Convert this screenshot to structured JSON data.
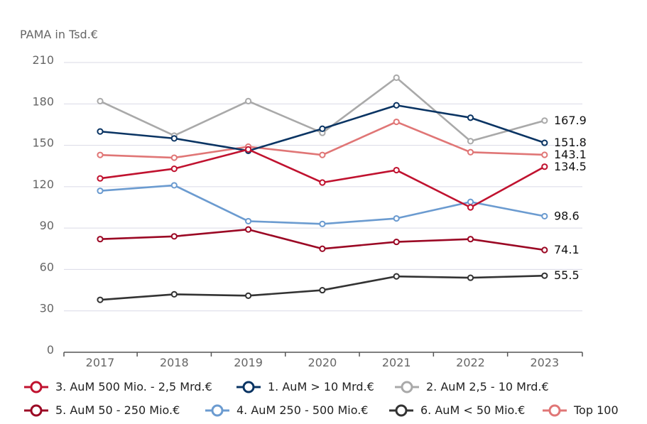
{
  "chart_data": {
    "type": "line",
    "ylabel": "PAMA in Tsd.€",
    "x": [
      "2017",
      "2018",
      "2019",
      "2020",
      "2021",
      "2022",
      "2023"
    ],
    "ylim": [
      0,
      210
    ],
    "yticks": [
      0,
      30,
      60,
      90,
      120,
      150,
      180,
      210
    ],
    "grid": true,
    "legend_position": "bottom",
    "series": [
      {
        "name": "3. AuM 500 Mio. - 2,5 Mrd.€",
        "color": "#c0122f",
        "values": [
          126,
          133,
          147,
          123,
          132,
          105,
          134.5
        ],
        "end_label": "134.5"
      },
      {
        "name": "1. AuM > 10 Mrd.€",
        "color": "#0a3463",
        "values": [
          160,
          155,
          146,
          162,
          179,
          170,
          151.8
        ],
        "end_label": "151.8"
      },
      {
        "name": "2. AuM 2,5 - 10 Mrd.€",
        "color": "#a9a9a9",
        "values": [
          182,
          157,
          182,
          159,
          199,
          153,
          167.9
        ],
        "end_label": "167.9"
      },
      {
        "name": "5. AuM 50 - 250 Mio.€",
        "color": "#9b0824",
        "values": [
          82,
          84,
          89,
          75,
          80,
          82,
          74.1
        ],
        "end_label": "74.1"
      },
      {
        "name": "4. AuM 250 - 500 Mio.€",
        "color": "#6b9bd0",
        "values": [
          117,
          121,
          95,
          93,
          97,
          109,
          98.6
        ],
        "end_label": "98.6"
      },
      {
        "name": "6. AuM < 50 Mio.€",
        "color": "#333333",
        "values": [
          38,
          42,
          41,
          45,
          55,
          54,
          55.5
        ],
        "end_label": "55.5"
      },
      {
        "name": "Top 100",
        "color": "#e07676",
        "values": [
          143,
          141,
          149,
          143,
          167,
          145,
          143.1
        ],
        "end_label": "143.1"
      }
    ]
  }
}
